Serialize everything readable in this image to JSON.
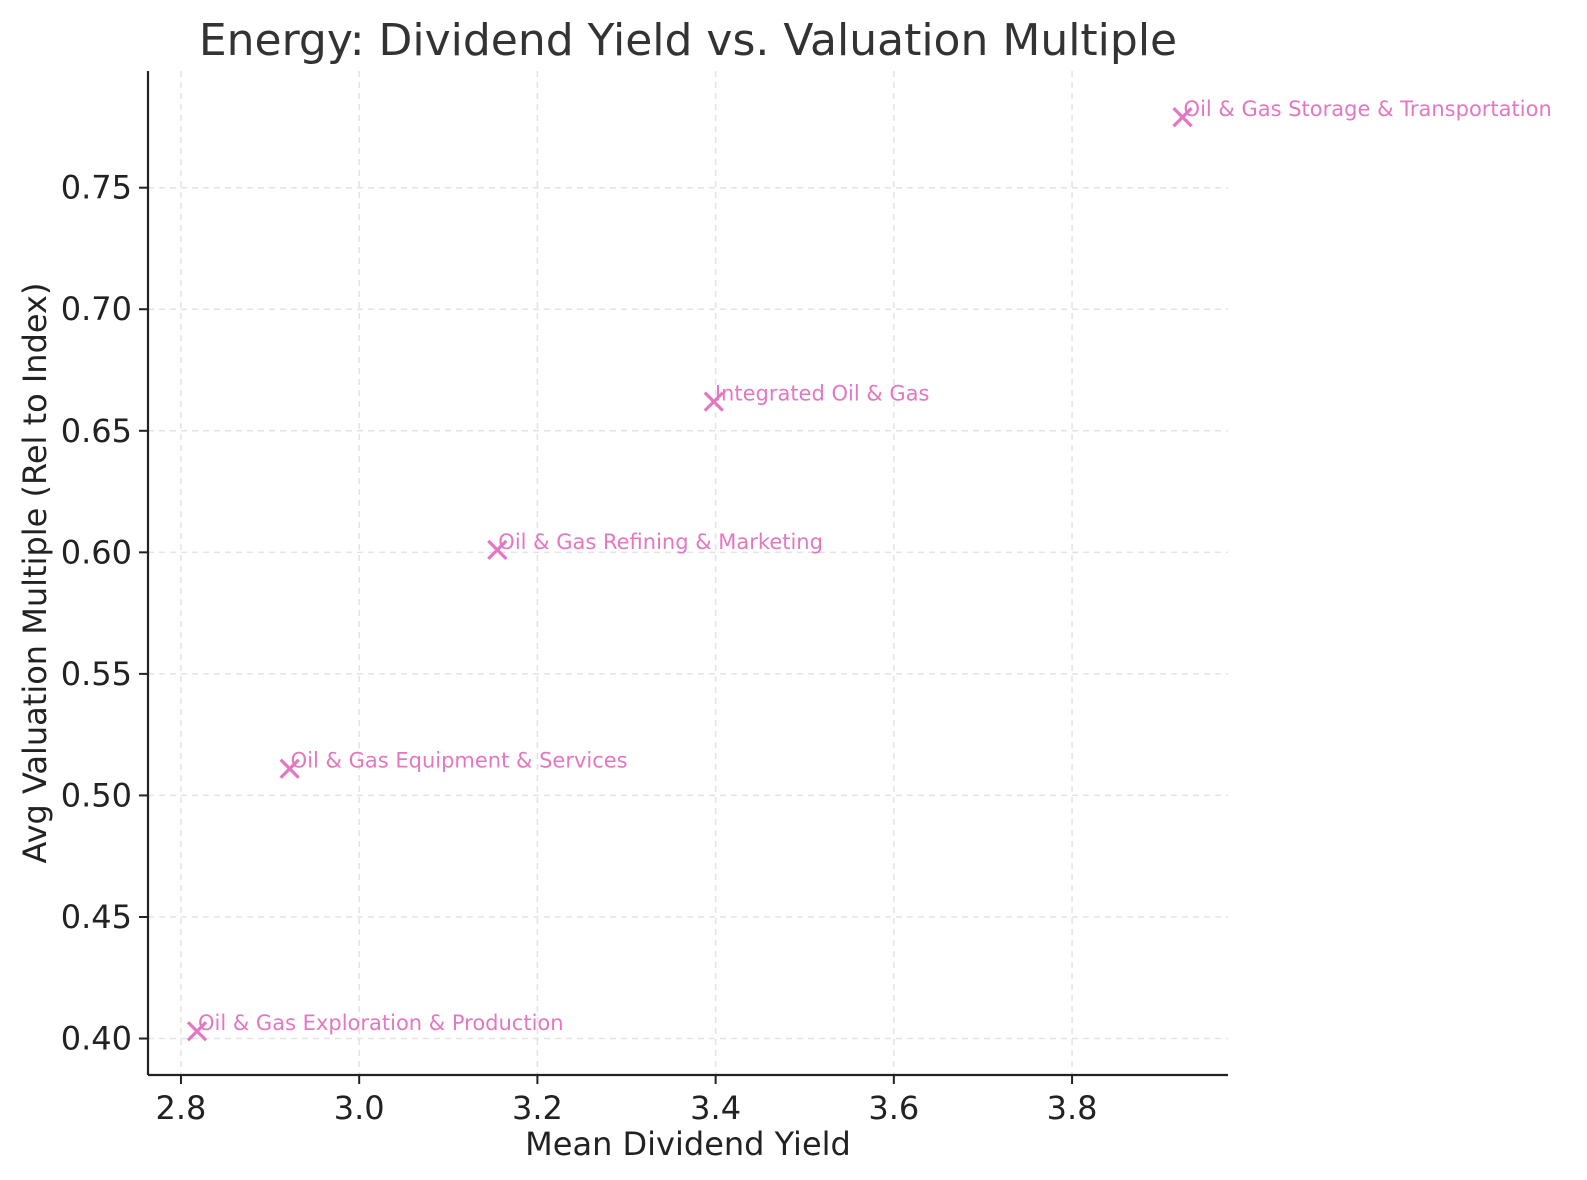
{
  "chart_data": {
    "type": "scatter",
    "title": "Energy: Dividend Yield vs. Valuation Multiple",
    "xlabel": "Mean Dividend Yield",
    "ylabel": "Avg Valuation Multiple (Rel to Index)",
    "xlim": [
      2.763,
      3.975
    ],
    "ylim": [
      0.385,
      0.798
    ],
    "x_ticks": [
      "2.8",
      "3.0",
      "3.2",
      "3.4",
      "3.6",
      "3.8"
    ],
    "y_ticks": [
      "0.40",
      "0.45",
      "0.50",
      "0.55",
      "0.60",
      "0.65",
      "0.70",
      "0.75"
    ],
    "grid": true,
    "marker": "x",
    "color": "#e377c2",
    "points": [
      {
        "label": "Oil & Gas Exploration & Production",
        "x": 2.818,
        "y": 0.403
      },
      {
        "label": "Oil & Gas Equipment & Services",
        "x": 2.922,
        "y": 0.511
      },
      {
        "label": "Oil & Gas Refining & Marketing",
        "x": 3.155,
        "y": 0.601
      },
      {
        "label": "Integrated Oil & Gas",
        "x": 3.398,
        "y": 0.662
      },
      {
        "label": "Oil & Gas Storage & Transportation",
        "x": 3.924,
        "y": 0.779
      }
    ]
  }
}
